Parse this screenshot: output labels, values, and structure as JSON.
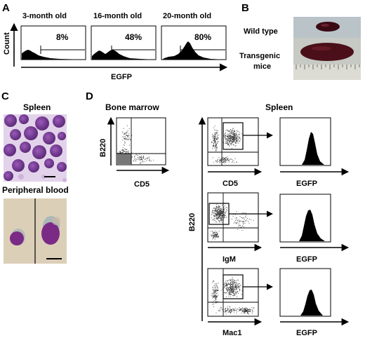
{
  "panels": {
    "A": {
      "label": "A",
      "histograms": [
        {
          "title": "3-month old",
          "percent": "8%"
        },
        {
          "title": "16-month old",
          "percent": "48%"
        },
        {
          "title": "20-month old",
          "percent": "80%"
        }
      ],
      "ylabel": "Count",
      "xlabel": "EGFP"
    },
    "B": {
      "label": "B",
      "row1": "Wild type",
      "row2a": "Transgenic",
      "row2b": "mice"
    },
    "C": {
      "label": "C",
      "top_title": "Spleen",
      "bottom_title": "Peripheral blood"
    },
    "D": {
      "label": "D",
      "bm_title": "Bone marrow",
      "spleen_title": "Spleen",
      "bm_ylabel": "B220",
      "bm_xlabel": "CD5",
      "spleen_ylabel": "B220",
      "rows": [
        {
          "dot_xlabel": "CD5",
          "hist_xlabel": "EGFP"
        },
        {
          "dot_xlabel": "IgM",
          "hist_xlabel": "EGFP"
        },
        {
          "dot_xlabel": "Mac1",
          "hist_xlabel": "EGFP"
        }
      ]
    }
  },
  "colors": {
    "stain_background": "#e2d3ea",
    "cell_purple": "#7b3f9a",
    "blood_background": "#dccfb8",
    "spleen_dark": "#4a0f18"
  }
}
